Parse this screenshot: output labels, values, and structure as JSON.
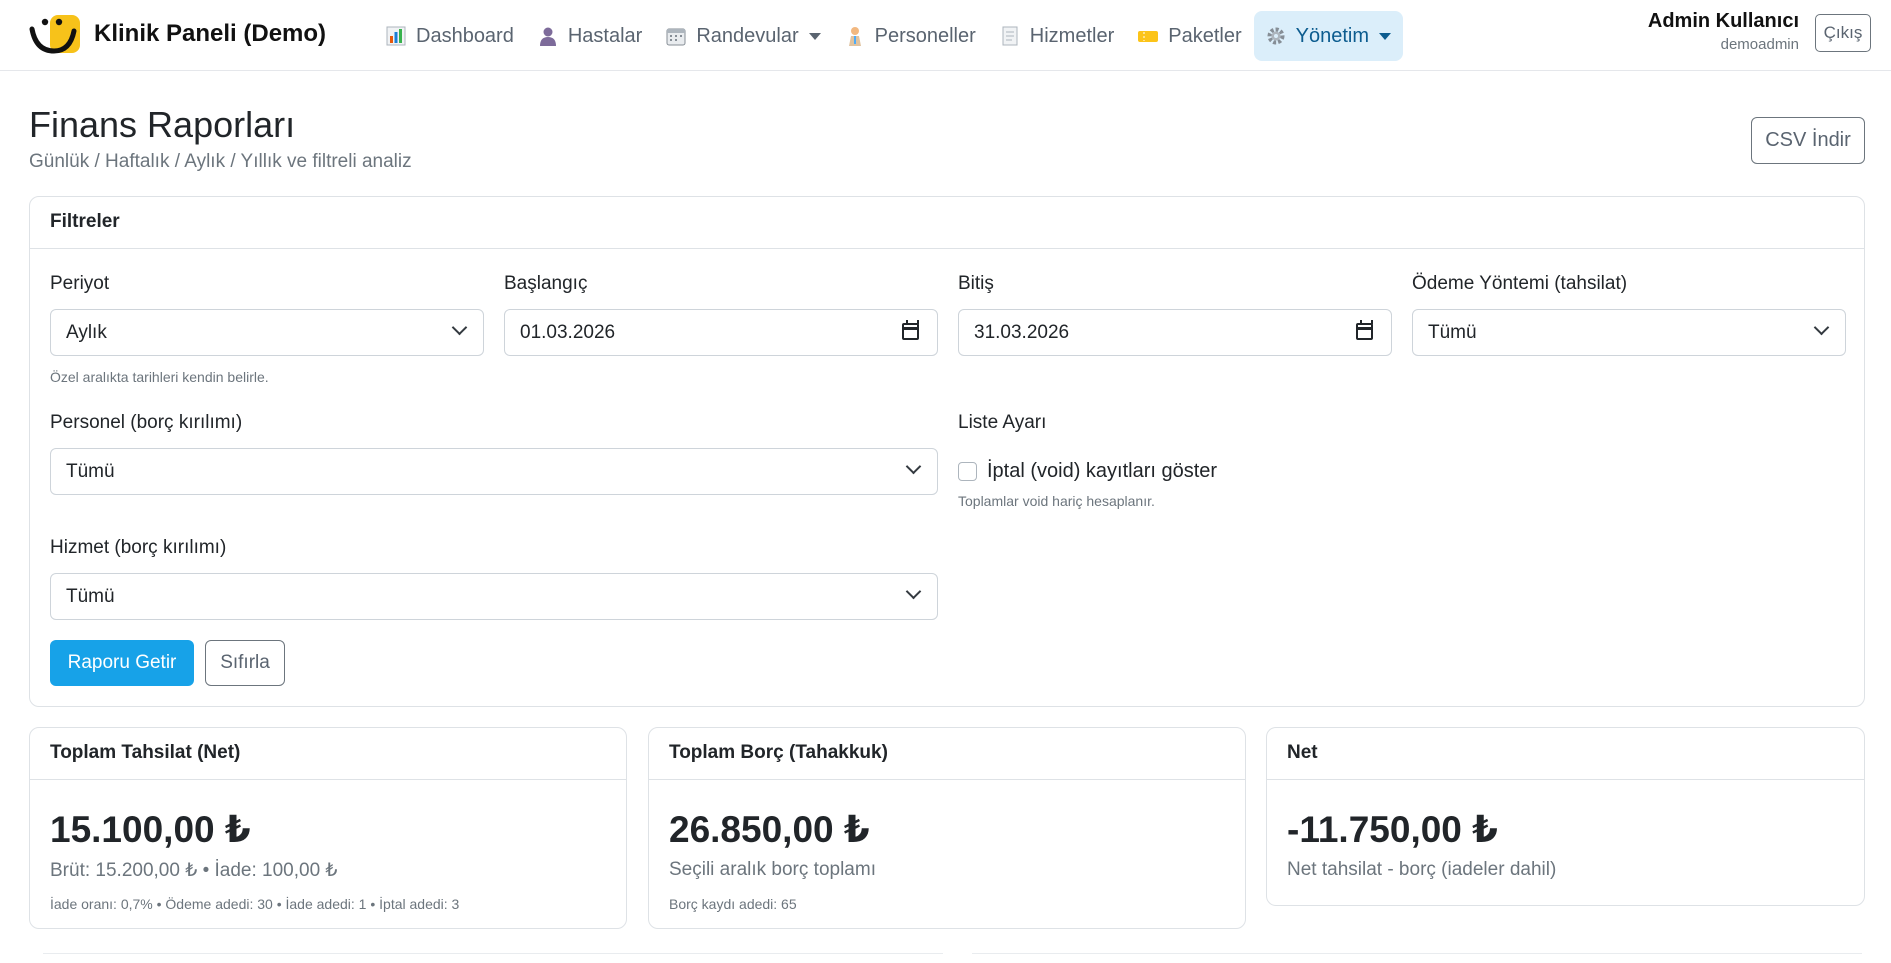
{
  "app": {
    "title": "Klinik Paneli (Demo)"
  },
  "nav": {
    "items": [
      {
        "label": "Dashboard",
        "icon": "bar-chart-icon"
      },
      {
        "label": "Hastalar",
        "icon": "person-icon"
      },
      {
        "label": "Randevular",
        "icon": "calendar-icon",
        "dropdown": true
      },
      {
        "label": "Personeller",
        "icon": "staff-icon"
      },
      {
        "label": "Hizmetler",
        "icon": "document-icon"
      },
      {
        "label": "Paketler",
        "icon": "ticket-icon"
      },
      {
        "label": "Yönetim",
        "icon": "gear-icon",
        "dropdown": true,
        "active": true
      }
    ]
  },
  "user": {
    "name": "Admin Kullanıcı",
    "handle": "demoadmin",
    "logout_label": "Çıkış"
  },
  "page": {
    "title": "Finans Raporları",
    "subtitle": "Günlük / Haftalık / Aylık / Yıllık ve filtreli analiz",
    "csv_label": "CSV İndir"
  },
  "filters": {
    "header": "Filtreler",
    "period": {
      "label": "Periyot",
      "value": "Aylık",
      "help": "Özel aralıkta tarihleri kendin belirle."
    },
    "start": {
      "label": "Başlangıç",
      "value": "01.03.2026"
    },
    "end": {
      "label": "Bitiş",
      "value": "31.03.2026"
    },
    "payment_method": {
      "label": "Ödeme Yöntemi (tahsilat)",
      "value": "Tümü"
    },
    "staff": {
      "label": "Personel (borç kırılımı)",
      "value": "Tümü"
    },
    "list_settings": {
      "label": "Liste Ayarı",
      "checkbox_label": "İptal (void) kayıtları göster",
      "checked": false,
      "help": "Toplamlar void hariç hesaplanır."
    },
    "service": {
      "label": "Hizmet (borç kırılımı)",
      "value": "Tümü"
    },
    "submit_label": "Raporu Getir",
    "reset_label": "Sıfırla"
  },
  "stats": {
    "collection": {
      "title": "Toplam Tahsilat (Net)",
      "value": "15.100,00 ₺",
      "sub": "Brüt: 15.200,00 ₺ • İade: 100,00 ₺",
      "detail": "İade oranı: 0,7% • Ödeme adedi: 30 • İade adedi: 1 • İptal adedi: 3"
    },
    "debt": {
      "title": "Toplam Borç (Tahakkuk)",
      "value": "26.850,00 ₺",
      "sub": "Seçili aralık borç toplamı",
      "detail": "Borç kaydı adedi: 65"
    },
    "net": {
      "title": "Net",
      "value": "-11.750,00 ₺",
      "sub": "Net tahsilat - borç (iadeler dahil)"
    }
  },
  "colors": {
    "primary": "#17a2e8",
    "active_nav_bg": "#dbeefa",
    "logo_yellow": "#f7c21a"
  }
}
